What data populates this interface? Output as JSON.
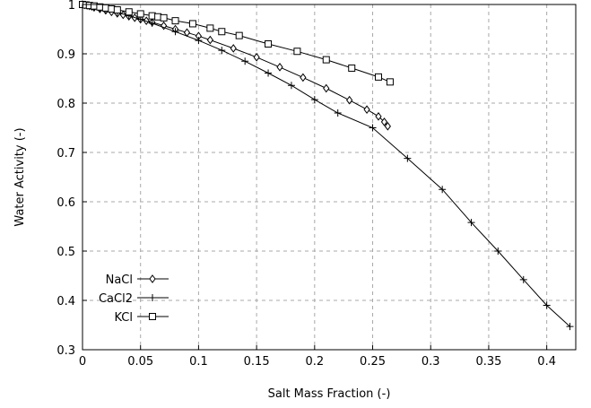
{
  "chart_data": {
    "type": "line",
    "title": "",
    "xlabel": "Salt Mass Fraction (-)",
    "ylabel": "Water Activity (-)",
    "xlim": [
      0,
      0.425
    ],
    "ylim": [
      0.3,
      1.0
    ],
    "grid": true,
    "grid_style": "dashed",
    "legend_position": "bottom-left",
    "x_ticks": [
      "0",
      "0.05",
      "0.1",
      "0.15",
      "0.2",
      "0.25",
      "0.3",
      "0.35",
      "0.4"
    ],
    "y_ticks": [
      "0.3",
      "0.4",
      "0.5",
      "0.6",
      "0.7",
      "0.8",
      "0.9",
      "1"
    ],
    "series": [
      {
        "name": "NaCl",
        "marker": "diamond",
        "color": "#000000",
        "x": [
          0.0,
          0.002,
          0.004,
          0.006,
          0.008,
          0.01,
          0.015,
          0.02,
          0.025,
          0.03,
          0.035,
          0.04,
          0.045,
          0.05,
          0.055,
          0.06,
          0.07,
          0.08,
          0.09,
          0.1,
          0.11,
          0.13,
          0.15,
          0.17,
          0.19,
          0.21,
          0.23,
          0.245,
          0.255,
          0.26,
          0.263
        ],
        "y": [
          1.0,
          0.999,
          0.998,
          0.997,
          0.996,
          0.994,
          0.991,
          0.988,
          0.985,
          0.982,
          0.979,
          0.976,
          0.973,
          0.97,
          0.967,
          0.964,
          0.957,
          0.95,
          0.943,
          0.936,
          0.928,
          0.911,
          0.893,
          0.873,
          0.852,
          0.83,
          0.806,
          0.787,
          0.773,
          0.762,
          0.753
        ]
      },
      {
        "name": "CaCl2",
        "marker": "plus",
        "color": "#000000",
        "x": [
          0.0,
          0.005,
          0.01,
          0.015,
          0.02,
          0.03,
          0.04,
          0.05,
          0.06,
          0.08,
          0.1,
          0.12,
          0.14,
          0.16,
          0.18,
          0.2,
          0.22,
          0.25,
          0.28,
          0.31,
          0.335,
          0.358,
          0.38,
          0.4,
          0.42
        ],
        "y": [
          1.0,
          0.998,
          0.995,
          0.993,
          0.99,
          0.984,
          0.977,
          0.97,
          0.962,
          0.945,
          0.927,
          0.907,
          0.885,
          0.861,
          0.836,
          0.807,
          0.78,
          0.75,
          0.688,
          0.625,
          0.558,
          0.5,
          0.442,
          0.39,
          0.347
        ]
      },
      {
        "name": "KCl",
        "marker": "square",
        "color": "#000000",
        "x": [
          0.0,
          0.003,
          0.006,
          0.01,
          0.015,
          0.02,
          0.025,
          0.03,
          0.04,
          0.05,
          0.06,
          0.065,
          0.07,
          0.08,
          0.095,
          0.11,
          0.12,
          0.135,
          0.16,
          0.185,
          0.21,
          0.232,
          0.255,
          0.265
        ],
        "y": [
          1.0,
          0.999,
          0.998,
          0.997,
          0.995,
          0.993,
          0.991,
          0.989,
          0.985,
          0.981,
          0.977,
          0.975,
          0.973,
          0.967,
          0.961,
          0.952,
          0.945,
          0.937,
          0.92,
          0.905,
          0.888,
          0.871,
          0.853,
          0.843
        ]
      }
    ]
  }
}
